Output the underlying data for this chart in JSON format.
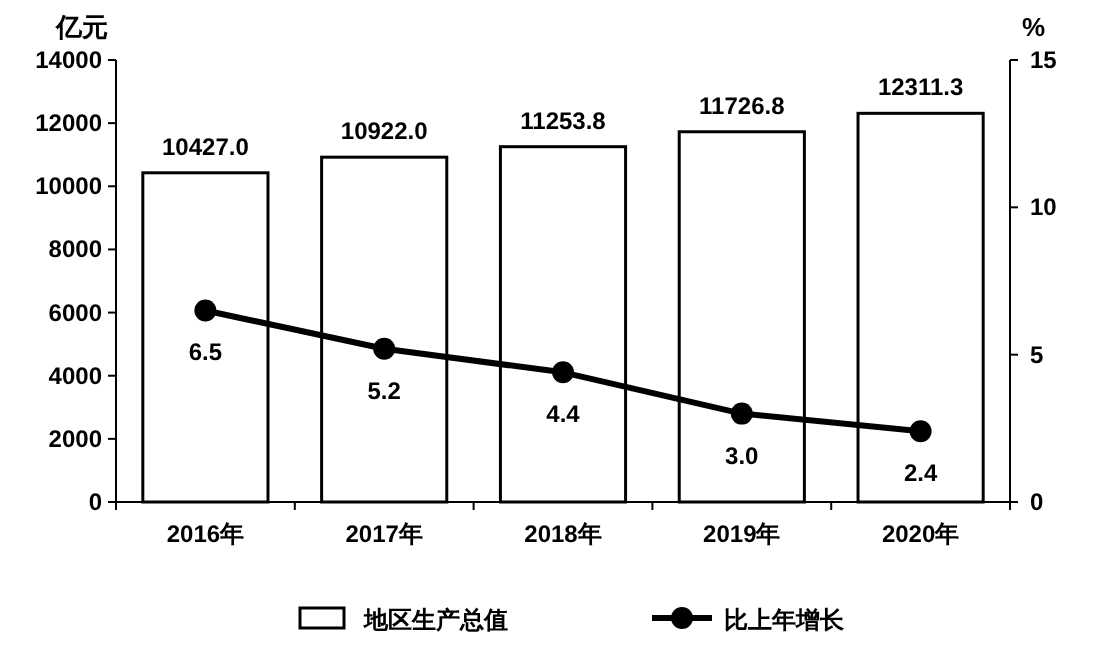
{
  "chart_data": {
    "type": "bar",
    "categories": [
      "2016年",
      "2017年",
      "2018年",
      "2019年",
      "2020年"
    ],
    "series": [
      {
        "name": "地区生产总值",
        "color": "#ffffff",
        "values": [
          10427.0,
          10922.0,
          11253.8,
          11726.8,
          12311.3
        ],
        "value_labels": [
          "10427.0",
          "10922.0",
          "11253.8",
          "11726.8",
          "12311.3"
        ]
      },
      {
        "name": "比上年增长",
        "type": "line",
        "axis": "y2",
        "color": "#000000",
        "values": [
          6.5,
          5.2,
          4.4,
          3.0,
          2.4
        ],
        "value_labels": [
          "6.5",
          "5.2",
          "4.4",
          "3.0",
          "2.4"
        ]
      }
    ],
    "ylabel": "亿元",
    "y2label": "%",
    "ylim": [
      0,
      14000
    ],
    "yticks": [
      0,
      2000,
      4000,
      6000,
      8000,
      10000,
      12000,
      14000
    ],
    "y2lim": [
      0,
      15
    ],
    "y2ticks": [
      0,
      5,
      10,
      15
    ],
    "legend": "bottom",
    "marker": "circle",
    "grid": false
  }
}
